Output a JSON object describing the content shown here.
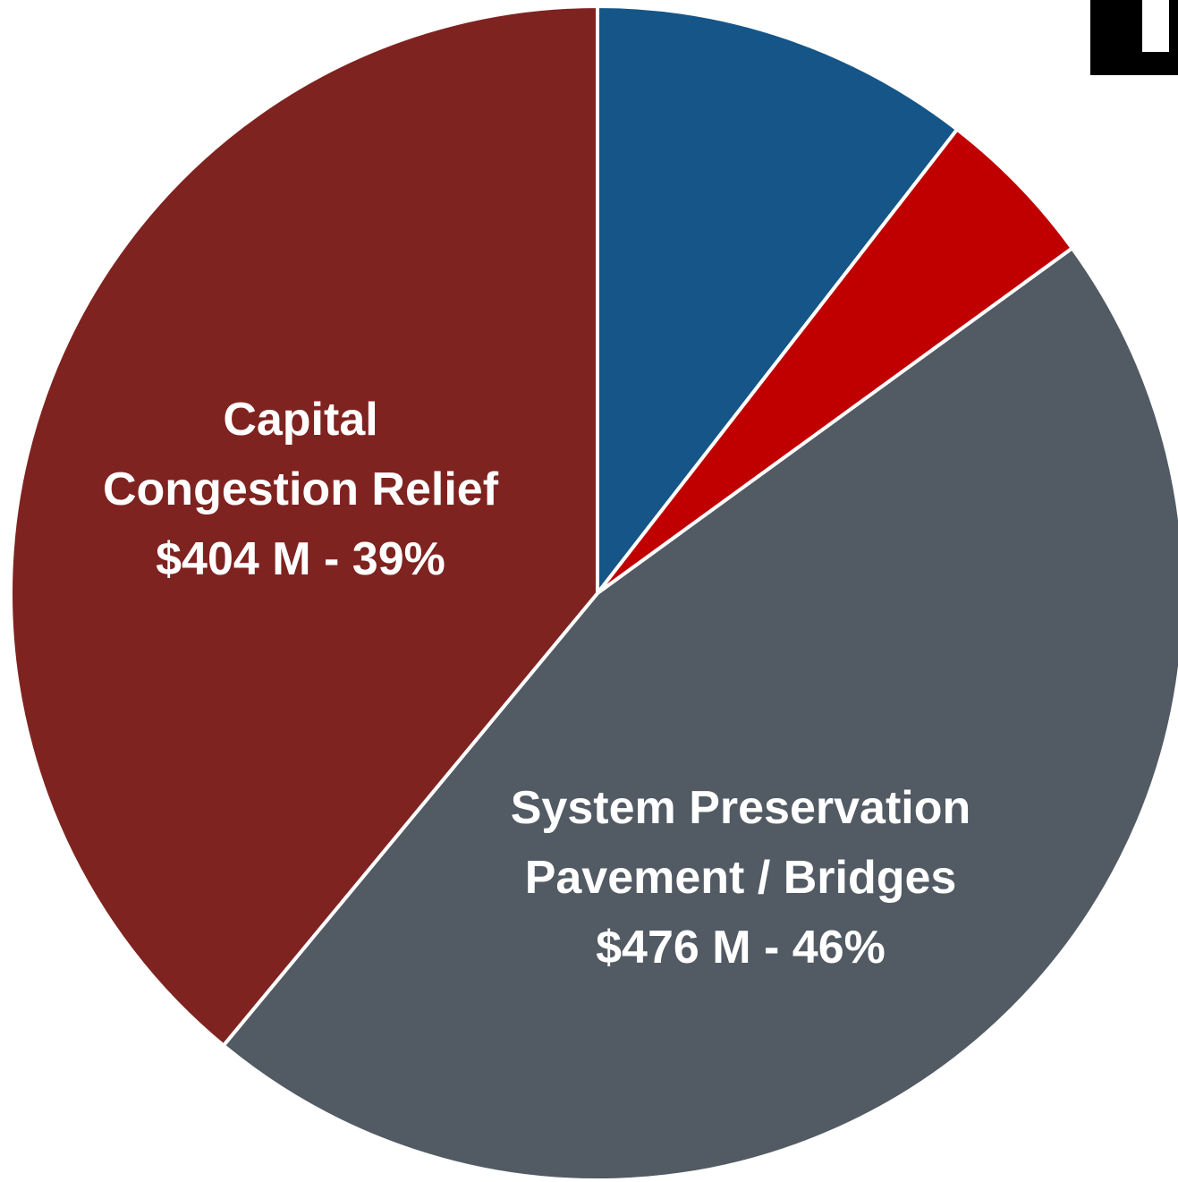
{
  "chart_data": {
    "type": "pie",
    "title": "",
    "start_angle_deg": 0,
    "direction": "clockwise",
    "slices": [
      {
        "category": "",
        "value": 10.5,
        "color": "#155587",
        "label_lines": []
      },
      {
        "category": "",
        "value": 4.5,
        "color": "#c00000",
        "label_lines": []
      },
      {
        "category": "System Preservation Pavement / Bridges",
        "value": 46,
        "amount": "$476 M",
        "percent": "46%",
        "color": "#525a63",
        "label_lines": [
          "System Preservation",
          "Pavement / Bridges",
          "$476 M - 46%"
        ]
      },
      {
        "category": "Capital Congestion Relief",
        "value": 39,
        "amount": "$404 M",
        "percent": "39%",
        "color": "#7f2320",
        "label_lines": [
          "Capital",
          "Congestion Relief",
          "$404 M - 39%"
        ]
      }
    ],
    "slice_border_color": "#ffffff",
    "label_color": "#ffffff"
  },
  "corner_mark": {
    "color": "#000000"
  }
}
